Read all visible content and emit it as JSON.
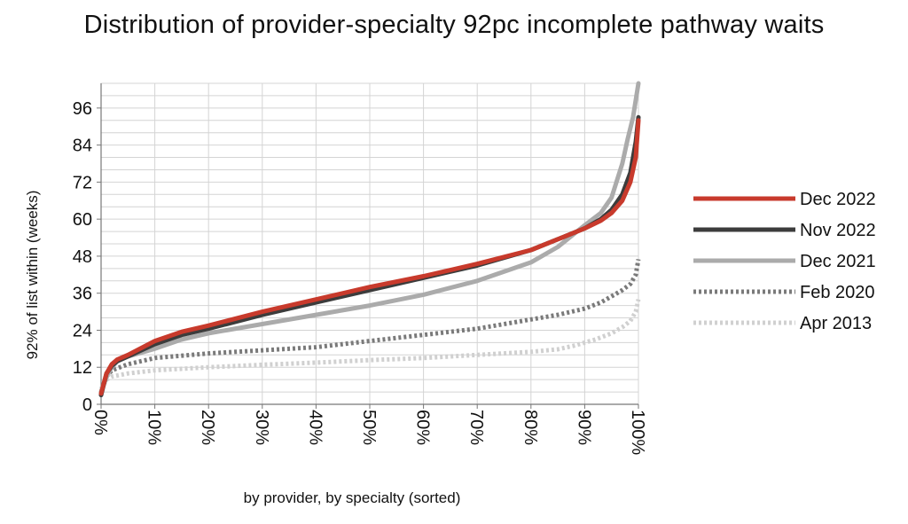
{
  "chart_data": {
    "type": "line",
    "title": "Distribution of provider-specialty 92pc incomplete pathway waits",
    "xlabel": "by provider, by specialty (sorted)",
    "ylabel": "92% of list within (weeks)",
    "xlim": [
      0,
      100
    ],
    "ylim": [
      0,
      104
    ],
    "x_ticks": [
      0,
      10,
      20,
      30,
      40,
      50,
      60,
      70,
      80,
      90,
      100
    ],
    "x_tick_labels": [
      "0%",
      "10%",
      "20%",
      "30%",
      "40%",
      "50%",
      "60%",
      "70%",
      "80%",
      "90%",
      "100%"
    ],
    "y_ticks": [
      0,
      12,
      24,
      36,
      48,
      60,
      72,
      84,
      96
    ],
    "y_tick_labels": [
      "0",
      "12",
      "24",
      "36",
      "48",
      "60",
      "72",
      "84",
      "96"
    ],
    "grid": "horizontal",
    "legend_position": "right",
    "series": [
      {
        "name": "Apr 2013",
        "color": "#d0d0d0",
        "style": "dotted",
        "points": [
          [
            0,
            5
          ],
          [
            1,
            8
          ],
          [
            2,
            9
          ],
          [
            5,
            10
          ],
          [
            10,
            11
          ],
          [
            20,
            12
          ],
          [
            30,
            12.8
          ],
          [
            40,
            13.5
          ],
          [
            50,
            14.3
          ],
          [
            60,
            15
          ],
          [
            70,
            16
          ],
          [
            80,
            17
          ],
          [
            85,
            17.8
          ],
          [
            88,
            19
          ],
          [
            92,
            21
          ],
          [
            95,
            23
          ],
          [
            97,
            25
          ],
          [
            98.5,
            27
          ],
          [
            99.5,
            30
          ],
          [
            100,
            34
          ]
        ]
      },
      {
        "name": "Feb 2020",
        "color": "#7a7a7a",
        "style": "dotted",
        "points": [
          [
            0,
            4
          ],
          [
            1,
            9
          ],
          [
            2,
            11
          ],
          [
            5,
            13
          ],
          [
            10,
            15
          ],
          [
            20,
            16.5
          ],
          [
            30,
            17.5
          ],
          [
            40,
            18.5
          ],
          [
            50,
            20.5
          ],
          [
            60,
            22.5
          ],
          [
            70,
            24.5
          ],
          [
            80,
            27.5
          ],
          [
            85,
            29
          ],
          [
            90,
            31
          ],
          [
            93,
            33
          ],
          [
            95,
            35
          ],
          [
            97,
            37
          ],
          [
            98.5,
            39
          ],
          [
            99.5,
            42
          ],
          [
            100,
            47
          ]
        ]
      },
      {
        "name": "Dec 2021",
        "color": "#ababab",
        "style": "solid",
        "points": [
          [
            0,
            4
          ],
          [
            1,
            9
          ],
          [
            2,
            12
          ],
          [
            3,
            14
          ],
          [
            5,
            15.5
          ],
          [
            10,
            18
          ],
          [
            15,
            21
          ],
          [
            20,
            23
          ],
          [
            30,
            26
          ],
          [
            40,
            29
          ],
          [
            50,
            32
          ],
          [
            60,
            35.5
          ],
          [
            70,
            40
          ],
          [
            80,
            46
          ],
          [
            85,
            51
          ],
          [
            90,
            58
          ],
          [
            93,
            62
          ],
          [
            95,
            67
          ],
          [
            97,
            78
          ],
          [
            98,
            86
          ],
          [
            99,
            93
          ],
          [
            100,
            104
          ]
        ]
      },
      {
        "name": "Nov 2022",
        "color": "#3c3c3c",
        "style": "solid",
        "points": [
          [
            0,
            3
          ],
          [
            1,
            10
          ],
          [
            2,
            12.5
          ],
          [
            3,
            14
          ],
          [
            5,
            15.5
          ],
          [
            10,
            19.5
          ],
          [
            15,
            22.5
          ],
          [
            20,
            24.5
          ],
          [
            30,
            29
          ],
          [
            40,
            33
          ],
          [
            50,
            37
          ],
          [
            60,
            41
          ],
          [
            70,
            45
          ],
          [
            80,
            50
          ],
          [
            85,
            53.5
          ],
          [
            90,
            57
          ],
          [
            93,
            60
          ],
          [
            95,
            63
          ],
          [
            97,
            68
          ],
          [
            98.5,
            75
          ],
          [
            99.5,
            85
          ],
          [
            100,
            93
          ]
        ]
      },
      {
        "name": "Dec 2022",
        "color": "#c83a2c",
        "style": "solid",
        "points": [
          [
            0,
            3.5
          ],
          [
            1,
            10
          ],
          [
            2,
            13
          ],
          [
            3,
            14.5
          ],
          [
            5,
            16
          ],
          [
            10,
            20.5
          ],
          [
            15,
            23.5
          ],
          [
            20,
            25.5
          ],
          [
            30,
            30
          ],
          [
            40,
            34
          ],
          [
            50,
            38
          ],
          [
            60,
            41.5
          ],
          [
            70,
            45.5
          ],
          [
            80,
            50
          ],
          [
            85,
            53.5
          ],
          [
            90,
            57
          ],
          [
            93,
            59.5
          ],
          [
            95,
            62
          ],
          [
            97,
            66
          ],
          [
            98.5,
            72
          ],
          [
            99.5,
            80
          ],
          [
            100,
            92
          ]
        ]
      }
    ],
    "legend_order": [
      "Dec 2022",
      "Nov 2022",
      "Dec 2021",
      "Feb 2020",
      "Apr 2013"
    ]
  }
}
